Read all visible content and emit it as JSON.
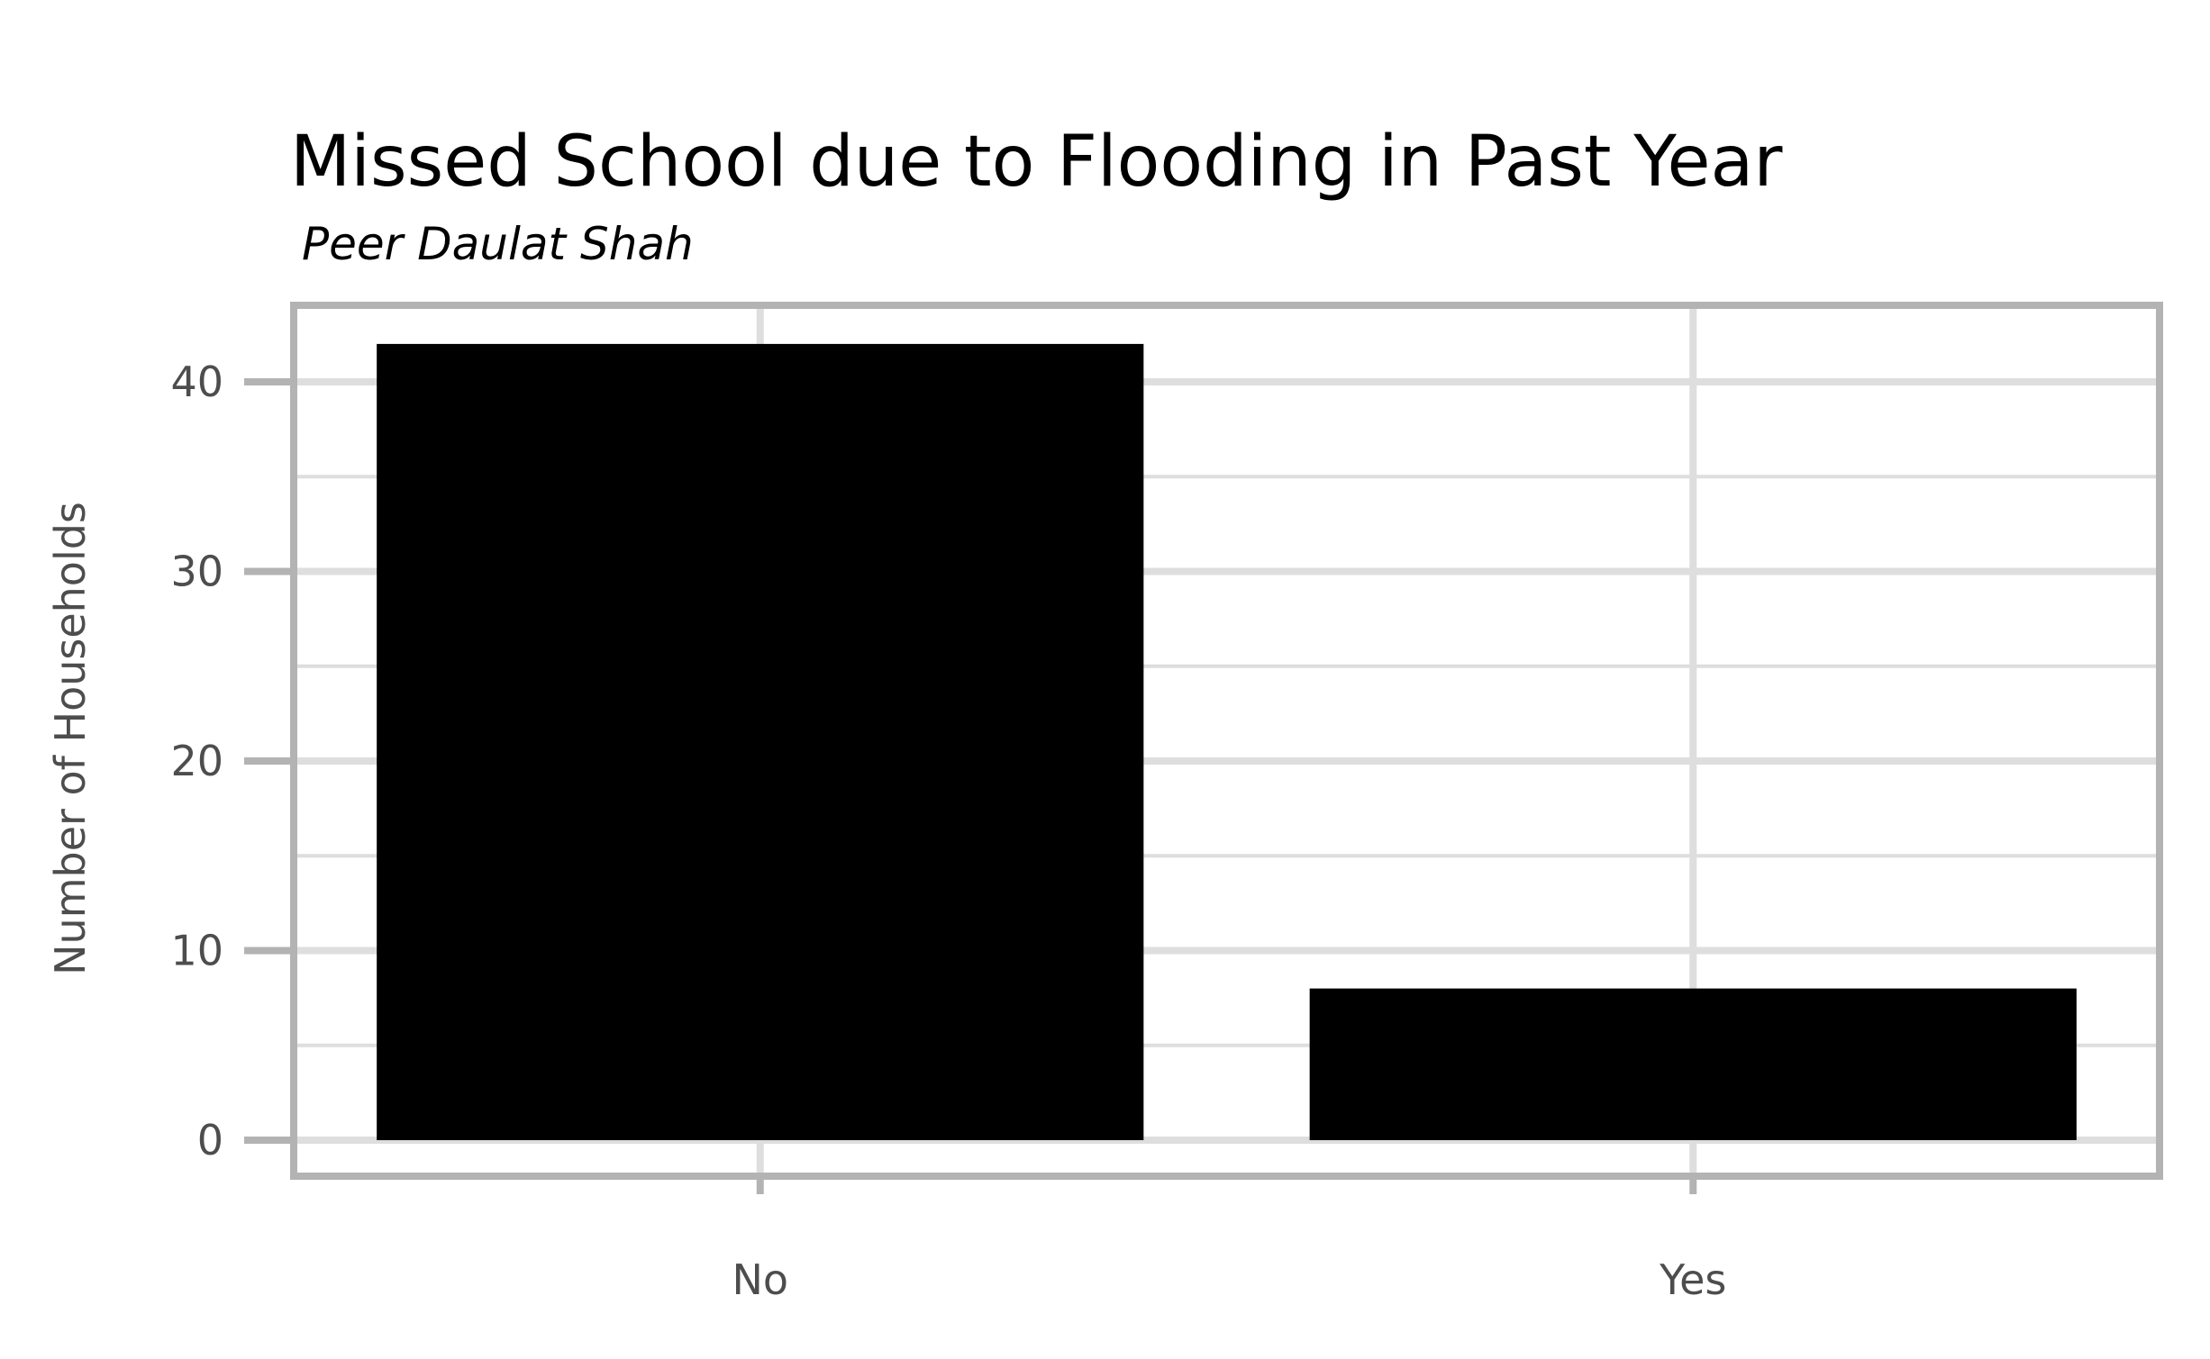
{
  "chart_data": {
    "type": "bar",
    "title": "Missed School due to Flooding in Past Year",
    "subtitle": "Peer Daulat Shah",
    "xlabel": "",
    "ylabel": "Number of Households",
    "categories": [
      "No",
      "Yes"
    ],
    "values": [
      42,
      8
    ],
    "ylim": [
      0,
      44
    ],
    "yticks": [
      0,
      10,
      20,
      30,
      40
    ],
    "grid": true,
    "legend": "none",
    "colors": {
      "bar": "#000000",
      "grid": "#dedede",
      "panel_border": "#b3b3b3",
      "tick_text": "#4d4d4d"
    }
  }
}
